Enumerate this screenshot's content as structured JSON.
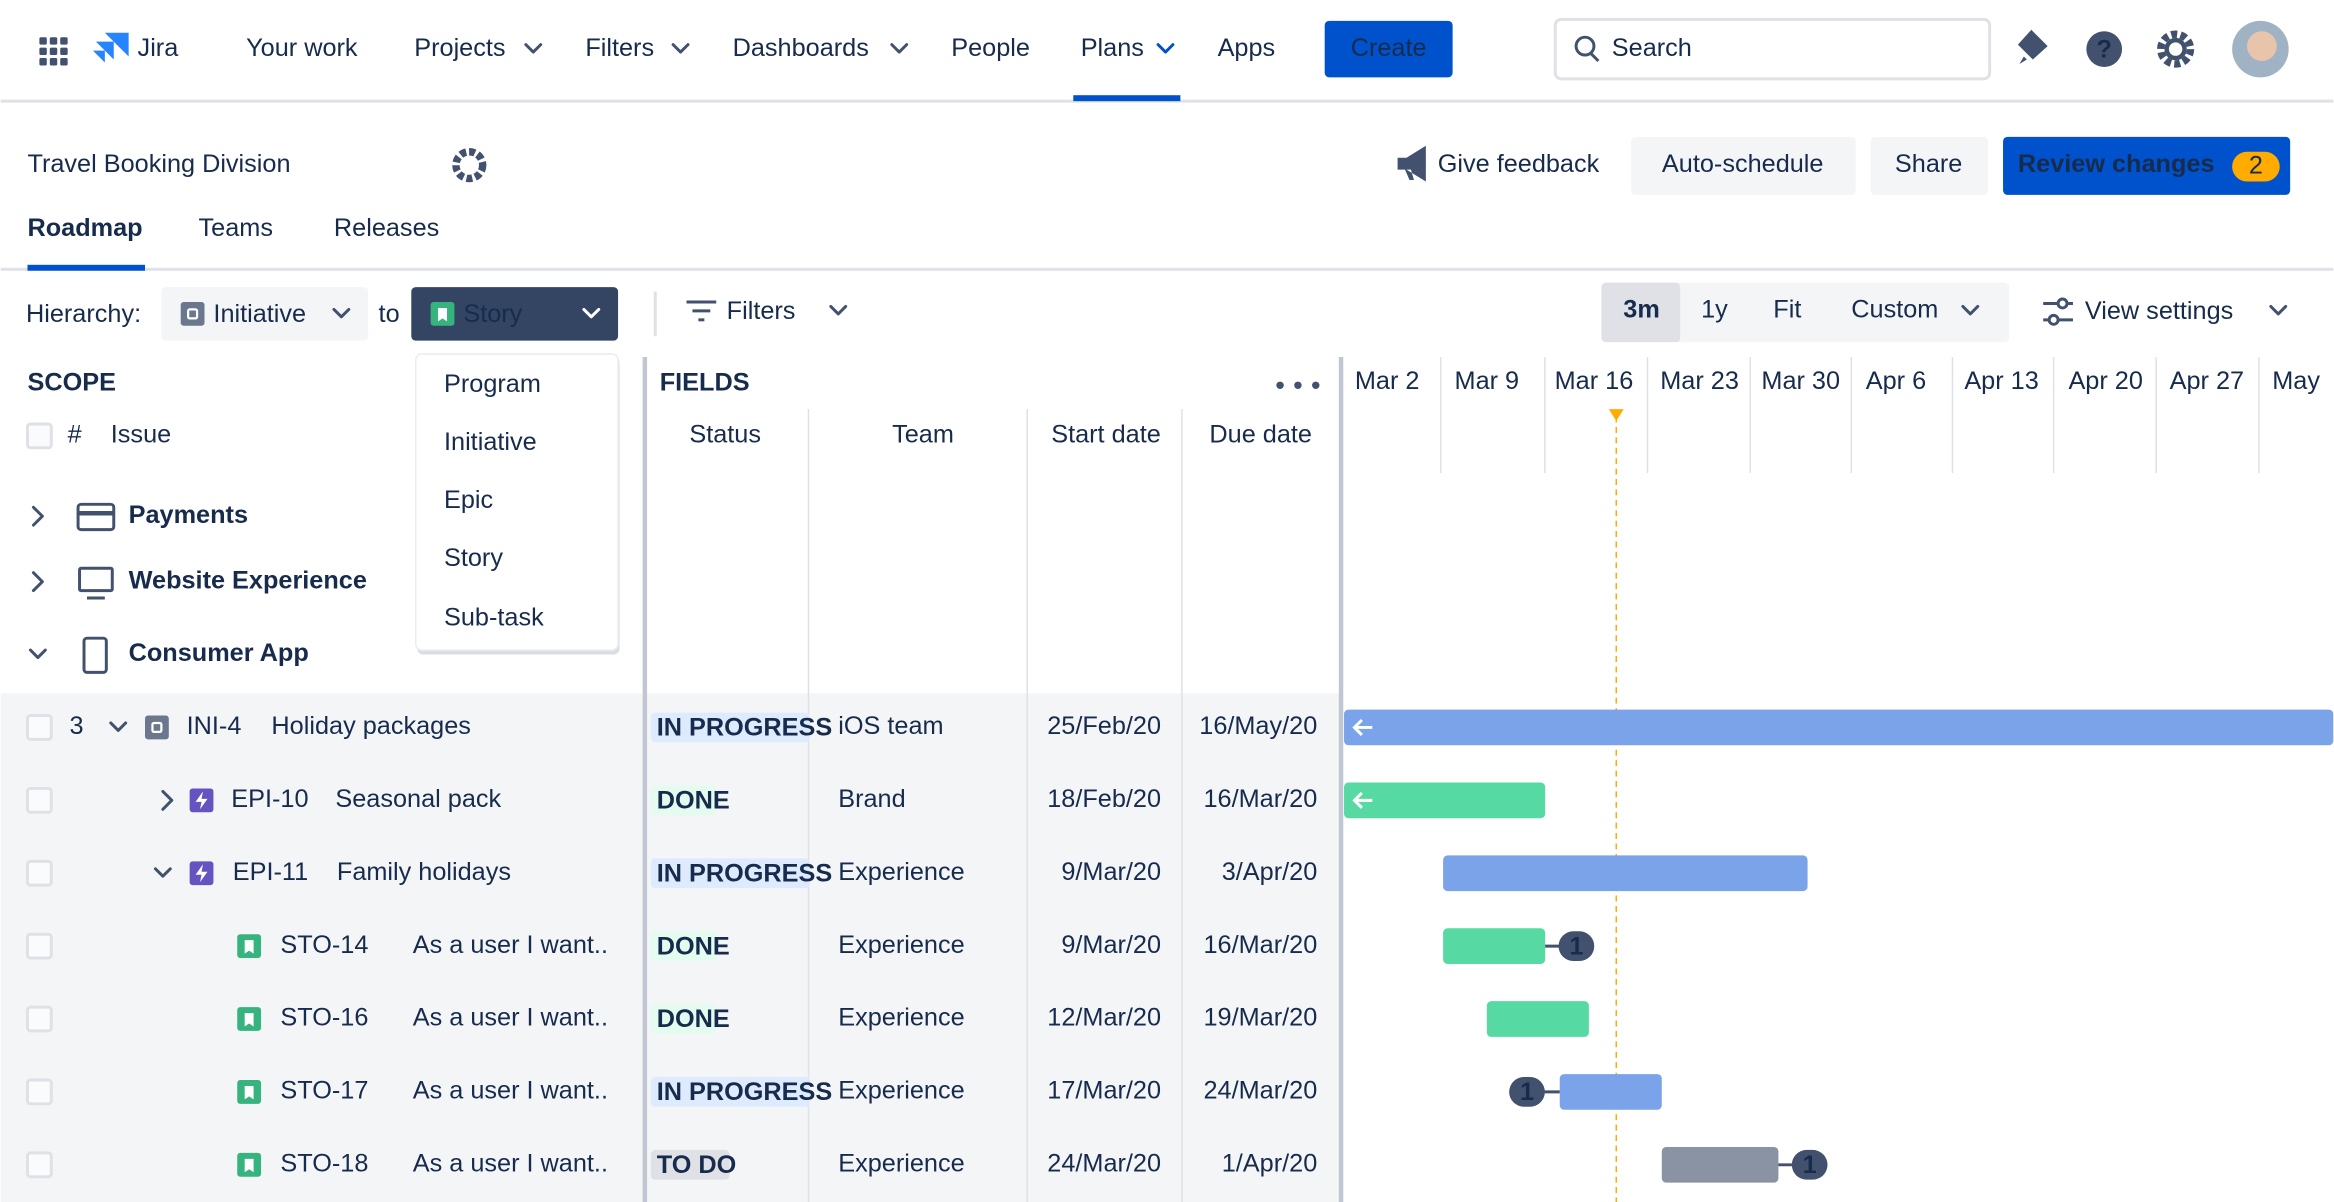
{
  "nav": {
    "logo": "Jira",
    "items": [
      "Your work",
      "Projects",
      "Filters",
      "Dashboards",
      "People",
      "Plans",
      "Apps"
    ],
    "create": "Create",
    "search": "Search"
  },
  "header": {
    "title": "Travel Booking Division",
    "feedback": "Give feedback",
    "auto_schedule": "Auto-schedule",
    "share": "Share",
    "review": "Review changes",
    "review_count": 2
  },
  "tabs": [
    "Roadmap",
    "Teams",
    "Releases"
  ],
  "toolbar": {
    "hierarchy_label": "Hierarchy:",
    "from": "Initiative",
    "to_label": "to",
    "to": "Story",
    "filters": "Filters",
    "ranges": [
      "3m",
      "1y",
      "Fit",
      "Custom"
    ],
    "view_settings": "View settings"
  },
  "dropdown": [
    "Program",
    "Initiative",
    "Epic",
    "Story",
    "Sub-task"
  ],
  "scope": {
    "label": "SCOPE",
    "hash": "#",
    "issue": "Issue",
    "groups": [
      "Payments",
      "Website Experience",
      "Consumer App"
    ]
  },
  "fields": {
    "label": "FIELDS",
    "columns": [
      "Status",
      "Team",
      "Start date",
      "Due date"
    ]
  },
  "timeline": {
    "dates": [
      "Mar 2",
      "Mar 9",
      "Mar 16",
      "Mar 23",
      "Mar 30",
      "Apr 6",
      "Apr 13",
      "Apr 20",
      "Apr 27",
      "May"
    ]
  },
  "rows": [
    {
      "count": 3,
      "key": "INI-4",
      "summary": "Holiday packages",
      "status": "IN PROGRESS",
      "team": "iOS team",
      "start": "25/Feb/20",
      "due": "16/May/20"
    },
    {
      "key": "EPI-10",
      "summary": "Seasonal pack",
      "status": "DONE",
      "team": "Brand",
      "start": "18/Feb/20",
      "due": "16/Mar/20"
    },
    {
      "key": "EPI-11",
      "summary": "Family holidays",
      "status": "IN PROGRESS",
      "team": "Experience",
      "start": "9/Mar/20",
      "due": "3/Apr/20"
    },
    {
      "key": "STO-14",
      "summary": "As a user I want..",
      "status": "DONE",
      "team": "Experience",
      "start": "9/Mar/20",
      "due": "16/Mar/20",
      "dependencies": 1
    },
    {
      "key": "STO-16",
      "summary": "As a user I want..",
      "status": "DONE",
      "team": "Experience",
      "start": "12/Mar/20",
      "due": "19/Mar/20"
    },
    {
      "key": "STO-17",
      "summary": "As a user I want..",
      "status": "IN PROGRESS",
      "team": "Experience",
      "start": "17/Mar/20",
      "due": "24/Mar/20",
      "dependencies": 1
    },
    {
      "key": "STO-18",
      "summary": "As a user I want..",
      "status": "TO DO",
      "team": "Experience",
      "start": "24/Mar/20",
      "due": "1/Apr/20",
      "dependencies": 1
    }
  ]
}
